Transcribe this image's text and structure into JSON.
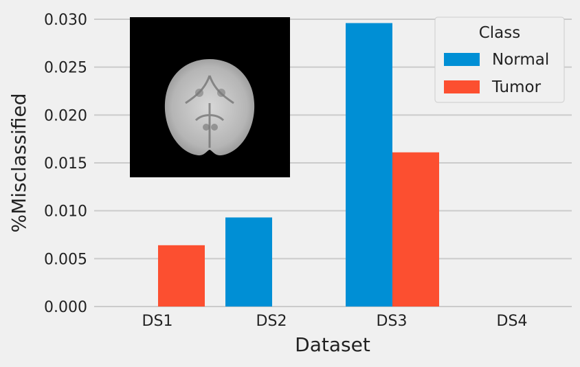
{
  "chart_data": {
    "type": "bar",
    "title": "",
    "xlabel": "Dataset",
    "ylabel": "%Misclassified",
    "categories": [
      "DS1",
      "DS2",
      "DS3",
      "DS4"
    ],
    "series": [
      {
        "name": "Normal",
        "values": [
          0.0,
          0.0093,
          0.0296,
          0.0
        ],
        "color": "#008fd5"
      },
      {
        "name": "Tumor",
        "values": [
          0.0064,
          0.0,
          0.0161,
          0.0
        ],
        "color": "#fc4f30"
      }
    ],
    "ylim": [
      0,
      0.03
    ],
    "yticks": [
      "0.000",
      "0.005",
      "0.010",
      "0.015",
      "0.020",
      "0.025",
      "0.030"
    ],
    "grid": true,
    "legend": {
      "title": "Class",
      "placement": "top-right"
    },
    "inset_image": {
      "description_icon": "brain-mri-slice",
      "placement": "top-left"
    }
  },
  "colors": {
    "background": "#f0f0f0",
    "grid": "#cbcbcb",
    "normal": "#008fd5",
    "tumor": "#fc4f30"
  }
}
